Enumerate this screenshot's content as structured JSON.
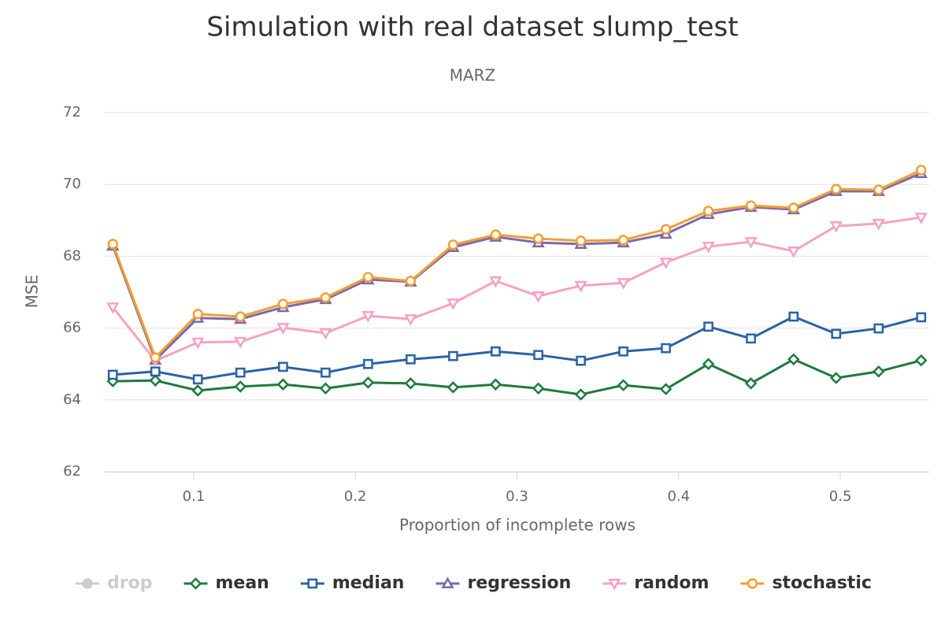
{
  "chart_data": {
    "type": "line",
    "title": "Simulation with real dataset slump_test",
    "subtitle": "MARZ",
    "x_label": "Proportion of incomplete rows",
    "y_label": "MSE",
    "x": [
      0.05,
      0.0763,
      0.1026,
      0.1289,
      0.1553,
      0.1816,
      0.2079,
      0.2342,
      0.2605,
      0.2868,
      0.3132,
      0.3395,
      0.3658,
      0.3921,
      0.4184,
      0.4447,
      0.4711,
      0.4974,
      0.5237,
      0.55
    ],
    "xlim": [
      0.045,
      0.555
    ],
    "xticks": [
      0.1,
      0.2,
      0.3,
      0.4,
      0.5
    ],
    "ylim": [
      62,
      72
    ],
    "yticks": [
      62,
      64,
      66,
      68,
      70,
      72
    ],
    "grid": true,
    "legend": "bottom",
    "series": [
      {
        "name": "drop",
        "color": "#cccccc",
        "marker": "circle",
        "visible": false,
        "values": [
          null,
          null,
          null,
          null,
          null,
          null,
          null,
          null,
          null,
          null,
          null,
          null,
          null,
          null,
          null,
          null,
          null,
          null,
          null,
          null
        ]
      },
      {
        "name": "mean",
        "color": "#1e7a3e",
        "marker": "diamond",
        "visible": true,
        "values": [
          64.52,
          64.54,
          64.26,
          64.37,
          64.43,
          64.32,
          64.48,
          64.46,
          64.35,
          64.43,
          64.32,
          64.15,
          64.41,
          64.3,
          65.0,
          64.46,
          65.13,
          64.61,
          64.79,
          65.1
        ]
      },
      {
        "name": "median",
        "color": "#2a62a8",
        "marker": "square",
        "visible": true,
        "values": [
          64.7,
          64.79,
          64.57,
          64.76,
          64.92,
          64.76,
          65.0,
          65.13,
          65.22,
          65.35,
          65.25,
          65.09,
          65.35,
          65.44,
          66.04,
          65.71,
          66.32,
          65.84,
          65.99,
          66.3
        ]
      },
      {
        "name": "regression",
        "color": "#7b68b0",
        "marker": "triangle",
        "visible": true,
        "values": [
          68.29,
          65.11,
          66.28,
          66.25,
          66.58,
          66.8,
          67.35,
          67.29,
          68.25,
          68.54,
          68.38,
          68.34,
          68.38,
          68.62,
          69.17,
          69.37,
          69.3,
          69.81,
          69.81,
          70.31
        ]
      },
      {
        "name": "random",
        "color": "#f4a3c0",
        "marker": "triangle-down",
        "visible": true,
        "values": [
          66.58,
          65.09,
          65.6,
          65.62,
          66.01,
          65.86,
          66.34,
          66.25,
          66.69,
          67.31,
          66.89,
          67.18,
          67.26,
          67.83,
          68.27,
          68.4,
          68.14,
          68.84,
          68.91,
          69.08
        ]
      },
      {
        "name": "stochastic",
        "color": "#f0a030",
        "marker": "circle",
        "visible": true,
        "values": [
          68.34,
          65.18,
          66.39,
          66.32,
          66.67,
          66.85,
          67.42,
          67.31,
          68.32,
          68.6,
          68.49,
          68.43,
          68.45,
          68.75,
          69.26,
          69.41,
          69.35,
          69.87,
          69.85,
          70.4
        ]
      }
    ]
  }
}
